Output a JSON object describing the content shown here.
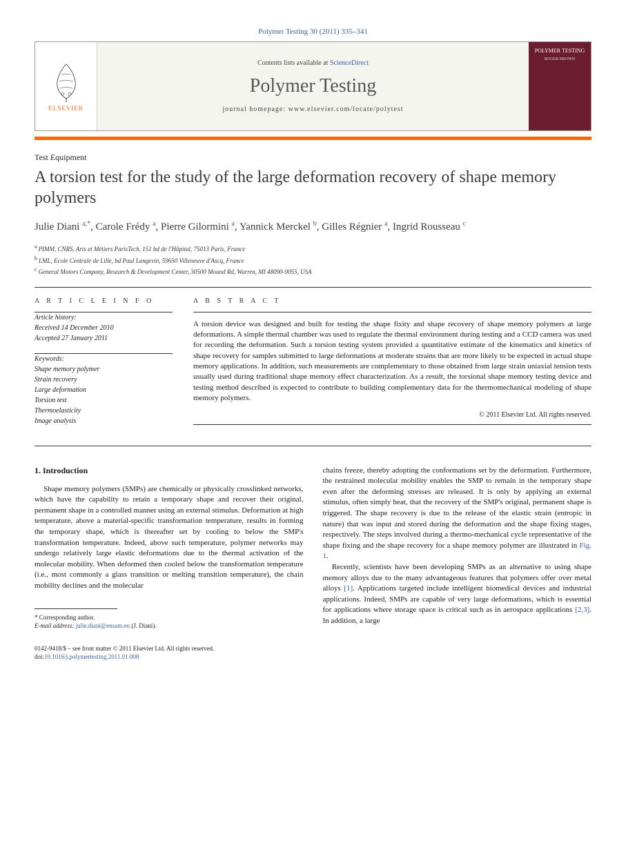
{
  "citation": "Polymer Testing 30 (2011) 335–341",
  "header": {
    "contents_prefix": "Contents lists available at ",
    "contents_link": "ScienceDirect",
    "journal": "Polymer Testing",
    "homepage_prefix": "journal homepage: ",
    "homepage_url": "www.elsevier.com/locate/polytest",
    "publisher": "ELSEVIER",
    "cover_title": "POLYMER TESTING",
    "cover_editor": "ROGER BROWN"
  },
  "article": {
    "section_label": "Test Equipment",
    "title": "A torsion test for the study of the large deformation recovery of shape memory polymers",
    "authors_html_parts": [
      {
        "name": "Julie Diani",
        "marks": "a,*"
      },
      {
        "name": "Carole Frédy",
        "marks": "a"
      },
      {
        "name": "Pierre Gilormini",
        "marks": "a"
      },
      {
        "name": "Yannick Merckel",
        "marks": "b"
      },
      {
        "name": "Gilles Régnier",
        "marks": "a"
      },
      {
        "name": "Ingrid Rousseau",
        "marks": "c"
      }
    ],
    "affiliations": [
      {
        "mark": "a",
        "text": "PIMM, CNRS, Arts et Métiers ParisTech, 151 bd de l'Hôpital, 75013 Paris, France"
      },
      {
        "mark": "b",
        "text": "LML, Ecole Centrale de Lille, bd Paul Langevin, 59650 Villeneuve d'Ascq, France"
      },
      {
        "mark": "c",
        "text": "General Motors Company, Research & Development Center, 30500 Mound Rd, Warren, MI 48090-9055, USA"
      }
    ]
  },
  "info": {
    "heading": "A R T I C L E   I N F O",
    "history_label": "Article history:",
    "received": "Received 14 December 2010",
    "accepted": "Accepted 27 January 2011",
    "keywords_label": "Keywords:",
    "keywords": [
      "Shape memory polymer",
      "Strain recovery",
      "Large deformation",
      "Torsion test",
      "Thermoelasticity",
      "Image analysis"
    ]
  },
  "abstract": {
    "heading": "A B S T R A C T",
    "text": "A torsion device was designed and built for testing the shape fixity and shape recovery of shape memory polymers at large deformations. A simple thermal chamber was used to regulate the thermal environment during testing and a CCD camera was used for recording the deformation. Such a torsion testing system provided a quantitative estimate of the kinematics and kinetics of shape recovery for samples submitted to large deformations at moderate strains that are more likely to be expected in actual shape memory applications. In addition, such measurements are complementary to those obtained from large strain uniaxial tension tests usually used during traditional shape memory effect characterization. As a result, the torsional shape memory testing device and testing method described is expected to contribute to building complementary data for the thermomechanical modeling of shape memory polymers.",
    "copyright": "© 2011 Elsevier Ltd. All rights reserved."
  },
  "body": {
    "intro_heading": "1. Introduction",
    "col1_p1": "Shape memory polymers (SMPs) are chemically or physically crosslinked networks, which have the capability to retain a temporary shape and recover their original, permanent shape in a controlled manner using an external stimulus. Deformation at high temperature, above a material-specific transformation temperature, results in forming the temporary shape, which is thereafter set by cooling to below the SMP's transformation temperature. Indeed, above such temperature, polymer networks may undergo relatively large elastic deformations due to the thermal activation of the molecular mobility. When deformed then cooled below the transformation temperature (i.e., most commonly a glass transition or melting transition temperature), the chain mobility declines and the molecular",
    "col2_p1": "chains freeze, thereby adopting the conformations set by the deformation. Furthermore, the restrained molecular mobility enables the SMP to remain in the temporary shape even after the deforming stresses are released. It is only by applying an external stimulus, often simply heat, that the recovery of the SMP's original, permanent shape is triggered. The shape recovery is due to the release of the elastic strain (entropic in nature) that was input and stored during the deformation and the shape fixing stages, respectively. The steps involved during a thermo-mechanical cycle representative of the shape fixing and the shape recovery for a shape memory polymer are illustrated in ",
    "col2_fig1": "Fig. 1",
    "col2_p1_end": ".",
    "col2_p2a": "Recently, scientists have been developing SMPs as an alternative to using shape memory alloys due to the many advantageous features that polymers offer over metal alloys ",
    "col2_ref1": "[1]",
    "col2_p2b": ". Applications targeted include intelligent biomedical devices and industrial applications. Indeed, SMPs are capable of very large deformations, which is essential for applications where storage space is critical such as in aerospace applications ",
    "col2_ref23": "[2,3]",
    "col2_p2c": ". In addition, a large"
  },
  "footnote": {
    "corr_label": "* Corresponding author.",
    "email_label": "E-mail address:",
    "email": "julie.diani@ensam.eu",
    "email_who": "(J. Diani)."
  },
  "footer": {
    "line1": "0142-9418/$ – see front matter © 2011 Elsevier Ltd. All rights reserved.",
    "doi_prefix": "doi:",
    "doi": "10.1016/j.polymertesting.2011.01.008"
  },
  "colors": {
    "link": "#3a5fa8",
    "orange": "#ff6600",
    "cover_bg": "#6b1d2e"
  }
}
